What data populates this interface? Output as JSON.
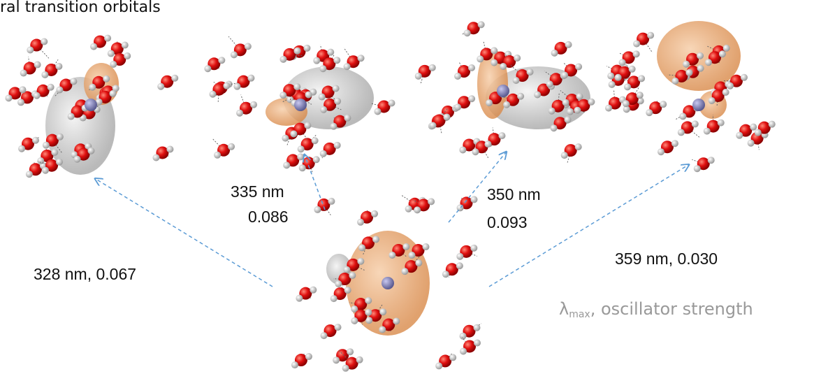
{
  "title": "ral transition orbitals",
  "labels": {
    "top_left": {
      "text": "328 nm, 0.067"
    },
    "mid_left": {
      "wavelength": "335 nm",
      "strength": "0.086"
    },
    "mid_right": {
      "wavelength": "350 nm",
      "strength": "0.093"
    },
    "right": {
      "text": "359 nm, 0.030"
    }
  },
  "legend": {
    "symbol": "λ",
    "subscript": "max",
    "text": ", oscillator strength"
  }
}
